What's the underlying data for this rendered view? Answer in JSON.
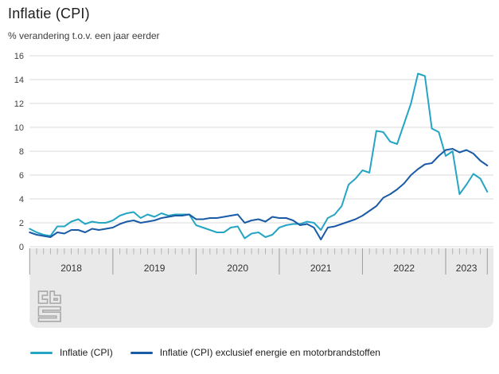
{
  "title": "Inflatie (CPI)",
  "subtitle": "% verandering t.o.v. een jaar eerder",
  "brand": {
    "logo": "cbs-logo"
  },
  "chart_data": {
    "type": "line",
    "title": "Inflatie (CPI)",
    "ylabel": "% verandering t.o.v. een jaar eerder",
    "x_start": "2018-01",
    "x_end": "2023-07",
    "x_unit": "month",
    "x_tick_years": [
      "2018",
      "2019",
      "2020",
      "2021",
      "2022",
      "2023"
    ],
    "ylim": [
      0,
      16
    ],
    "y_ticks": [
      0,
      2,
      4,
      6,
      8,
      10,
      12,
      14,
      16
    ],
    "grid": true,
    "legend_position": "bottom",
    "series": [
      {
        "name": "Inflatie (CPI)",
        "color": "#25a5c4",
        "values": [
          1.5,
          1.2,
          1.0,
          0.9,
          1.7,
          1.7,
          2.1,
          2.3,
          1.9,
          2.1,
          2.0,
          2.0,
          2.2,
          2.6,
          2.8,
          2.9,
          2.4,
          2.7,
          2.5,
          2.8,
          2.6,
          2.7,
          2.7,
          2.7,
          1.8,
          1.6,
          1.4,
          1.2,
          1.2,
          1.6,
          1.7,
          0.7,
          1.1,
          1.2,
          0.8,
          1.0,
          1.6,
          1.8,
          1.9,
          1.9,
          2.1,
          2.0,
          1.4,
          2.4,
          2.7,
          3.4,
          5.2,
          5.7,
          6.4,
          6.2,
          9.7,
          9.6,
          8.8,
          8.6,
          10.3,
          12.0,
          14.5,
          14.3,
          9.9,
          9.6,
          7.6,
          8.0,
          4.4,
          5.2,
          6.1,
          5.7,
          4.6
        ]
      },
      {
        "name": "Inflatie (CPI) exclusief energie en motorbrandstoffen",
        "color": "#1a5ba6",
        "values": [
          1.2,
          1.0,
          0.9,
          0.8,
          1.2,
          1.1,
          1.4,
          1.4,
          1.2,
          1.5,
          1.4,
          1.5,
          1.6,
          1.9,
          2.1,
          2.2,
          2.0,
          2.1,
          2.2,
          2.4,
          2.5,
          2.6,
          2.6,
          2.7,
          2.3,
          2.3,
          2.4,
          2.4,
          2.5,
          2.6,
          2.7,
          2.0,
          2.2,
          2.3,
          2.1,
          2.5,
          2.4,
          2.4,
          2.2,
          1.8,
          1.9,
          1.6,
          0.6,
          1.6,
          1.7,
          1.9,
          2.1,
          2.3,
          2.6,
          3.0,
          3.4,
          4.1,
          4.4,
          4.8,
          5.3,
          6.0,
          6.5,
          6.9,
          7.0,
          7.6,
          8.1,
          8.2,
          7.9,
          8.1,
          7.8,
          7.2,
          6.8
        ]
      }
    ]
  }
}
